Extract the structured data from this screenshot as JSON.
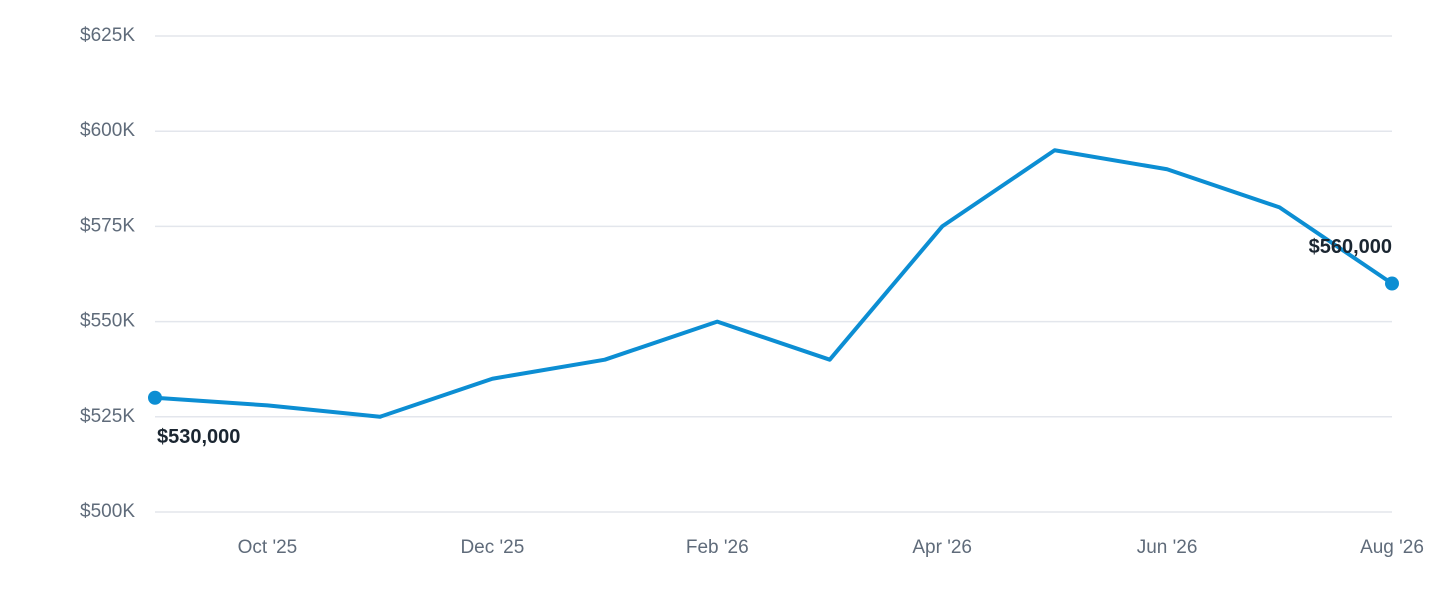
{
  "chart_data": {
    "type": "line",
    "categories": [
      null,
      "Oct '25",
      null,
      "Dec '25",
      null,
      "Feb '26",
      null,
      "Apr '26",
      null,
      "Jun '26",
      null,
      "Aug '26"
    ],
    "series": [
      {
        "color": "#0c8ed3",
        "values": [
          530000,
          528000,
          525000,
          535000,
          540000,
          550000,
          540000,
          575000,
          595000,
          590000,
          580000,
          560000
        ],
        "value_labels": [
          "$530,000",
          null,
          null,
          null,
          null,
          null,
          null,
          null,
          null,
          null,
          null,
          "$560,000"
        ]
      }
    ],
    "ylim": [
      500000,
      625000
    ],
    "yticks": [
      {
        "value": 500000,
        "label": "$500K"
      },
      {
        "value": 525000,
        "label": "$525K"
      },
      {
        "value": 550000,
        "label": "$550K"
      },
      {
        "value": 575000,
        "label": "$575K"
      },
      {
        "value": 600000,
        "label": "$600K"
      },
      {
        "value": 625000,
        "label": "$625K"
      }
    ],
    "grid": true
  }
}
